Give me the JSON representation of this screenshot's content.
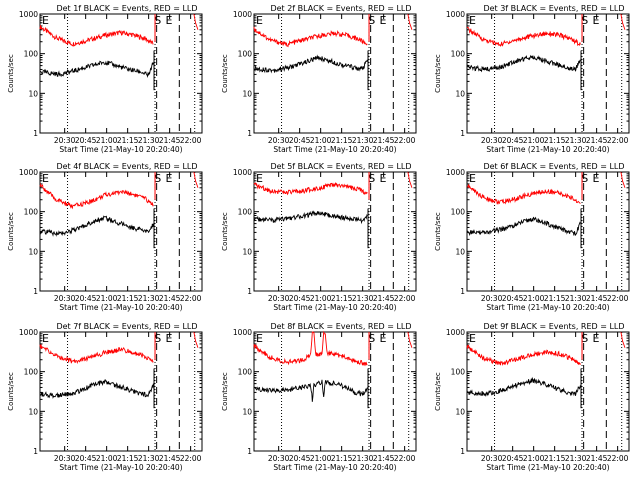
{
  "chart_data": [
    {
      "type": "line",
      "title": "Det 1f BLACK = Events, RED = LLD",
      "xlabel": "Start Time (21-May-10 20:20:40)",
      "ylabel": "Counts/sec",
      "yscale": "log",
      "ylim": [
        1,
        1000
      ],
      "xlim": [
        0,
        100
      ],
      "x_tick_labels": [
        "20:30",
        "20:45",
        "21:00",
        "21:15",
        "21:30",
        "21:45",
        "22:00"
      ],
      "y_tick_labels": [
        "1",
        "10",
        "100",
        "1000"
      ],
      "flag_labels": [
        "E",
        "S",
        "E"
      ],
      "series": [
        {
          "color": "#ff0000",
          "values": [
            [
              0,
              480
            ],
            [
              10,
              250
            ],
            [
              20,
              175
            ],
            [
              30,
              220
            ],
            [
              40,
              290
            ],
            [
              50,
              340
            ],
            [
              57,
              300
            ],
            [
              65,
              240
            ],
            [
              70,
              175
            ]
          ]
        },
        {
          "color": "#000000",
          "values": [
            [
              0,
              35
            ],
            [
              12,
              30
            ],
            [
              22,
              38
            ],
            [
              32,
              50
            ],
            [
              40,
              62
            ],
            [
              47,
              50
            ],
            [
              55,
              40
            ],
            [
              62,
              35
            ],
            [
              67,
              28
            ],
            [
              70,
              60
            ]
          ]
        }
      ]
    },
    {
      "type": "line",
      "title": "Det 2f BLACK = Events, RED = LLD",
      "xlabel": "Start Time (21-May-10 20:20:40)",
      "ylabel": "Counts/sec",
      "yscale": "log",
      "ylim": [
        1,
        1000
      ],
      "xlim": [
        0,
        100
      ],
      "x_tick_labels": [
        "20:30",
        "20:45",
        "21:00",
        "21:15",
        "21:30",
        "21:45",
        "22:00"
      ],
      "y_tick_labels": [
        "1",
        "10",
        "100",
        "1000"
      ],
      "flag_labels": [
        "E",
        "S",
        "E"
      ],
      "series": [
        {
          "color": "#ff0000",
          "values": [
            [
              0,
              420
            ],
            [
              10,
              220
            ],
            [
              20,
              170
            ],
            [
              30,
              220
            ],
            [
              40,
              280
            ],
            [
              50,
              330
            ],
            [
              57,
              290
            ],
            [
              65,
              230
            ],
            [
              70,
              170
            ]
          ]
        },
        {
          "color": "#000000",
          "values": [
            [
              0,
              42
            ],
            [
              12,
              38
            ],
            [
              22,
              45
            ],
            [
              32,
              62
            ],
            [
              40,
              80
            ],
            [
              47,
              65
            ],
            [
              55,
              52
            ],
            [
              62,
              45
            ],
            [
              67,
              40
            ],
            [
              70,
              70
            ]
          ]
        }
      ]
    },
    {
      "type": "line",
      "title": "Det 3f BLACK = Events, RED = LLD",
      "xlabel": "Start Time (21-May-10 20:20:40)",
      "ylabel": "Counts/sec",
      "yscale": "log",
      "ylim": [
        1,
        1000
      ],
      "xlim": [
        0,
        100
      ],
      "x_tick_labels": [
        "20:30",
        "20:45",
        "21:00",
        "21:15",
        "21:30",
        "21:45",
        "22:00"
      ],
      "y_tick_labels": [
        "1",
        "10",
        "100",
        "1000"
      ],
      "flag_labels": [
        "E",
        "S",
        "E"
      ],
      "series": [
        {
          "color": "#ff0000",
          "values": [
            [
              0,
              430
            ],
            [
              10,
              230
            ],
            [
              20,
              170
            ],
            [
              30,
              220
            ],
            [
              40,
              280
            ],
            [
              50,
              330
            ],
            [
              57,
              290
            ],
            [
              65,
              230
            ],
            [
              70,
              170
            ]
          ]
        },
        {
          "color": "#000000",
          "values": [
            [
              0,
              45
            ],
            [
              12,
              40
            ],
            [
              22,
              48
            ],
            [
              32,
              68
            ],
            [
              40,
              85
            ],
            [
              47,
              68
            ],
            [
              55,
              55
            ],
            [
              62,
              45
            ],
            [
              67,
              40
            ],
            [
              70,
              70
            ]
          ]
        }
      ]
    },
    {
      "type": "line",
      "title": "Det 4f BLACK = Events, RED = LLD",
      "xlabel": "Start Time (21-May-10 20:20:40)",
      "ylabel": "Counts/sec",
      "yscale": "log",
      "ylim": [
        1,
        1000
      ],
      "xlim": [
        0,
        100
      ],
      "x_tick_labels": [
        "20:30",
        "20:45",
        "21:00",
        "21:15",
        "21:30",
        "21:45",
        "22:00"
      ],
      "y_tick_labels": [
        "1",
        "10",
        "100",
        "1000"
      ],
      "flag_labels": [
        "E",
        "S",
        "E"
      ],
      "series": [
        {
          "color": "#ff0000",
          "values": [
            [
              0,
              470
            ],
            [
              10,
              200
            ],
            [
              20,
              135
            ],
            [
              30,
              170
            ],
            [
              40,
              260
            ],
            [
              50,
              320
            ],
            [
              57,
              280
            ],
            [
              65,
              210
            ],
            [
              70,
              150
            ]
          ]
        },
        {
          "color": "#000000",
          "values": [
            [
              0,
              32
            ],
            [
              12,
              28
            ],
            [
              22,
              35
            ],
            [
              32,
              55
            ],
            [
              40,
              70
            ],
            [
              47,
              55
            ],
            [
              55,
              42
            ],
            [
              62,
              35
            ],
            [
              67,
              30
            ],
            [
              70,
              50
            ]
          ]
        }
      ]
    },
    {
      "type": "line",
      "title": "Det 5f BLACK = Events, RED = LLD",
      "xlabel": "Start Time (21-May-10 20:20:40)",
      "ylabel": "Counts/sec",
      "yscale": "log",
      "ylim": [
        1,
        1000
      ],
      "xlim": [
        0,
        100
      ],
      "x_tick_labels": [
        "20:30",
        "20:45",
        "21:00",
        "21:15",
        "21:30",
        "21:45",
        "22:00"
      ],
      "y_tick_labels": [
        "1",
        "10",
        "100",
        "1000"
      ],
      "flag_labels": [
        "E",
        "S",
        "E"
      ],
      "series": [
        {
          "color": "#ff0000",
          "values": [
            [
              0,
              480
            ],
            [
              10,
              340
            ],
            [
              20,
              300
            ],
            [
              30,
              330
            ],
            [
              40,
              400
            ],
            [
              50,
              470
            ],
            [
              57,
              420
            ],
            [
              65,
              360
            ],
            [
              70,
              290
            ]
          ]
        },
        {
          "color": "#000000",
          "values": [
            [
              0,
              65
            ],
            [
              12,
              60
            ],
            [
              22,
              68
            ],
            [
              32,
              80
            ],
            [
              40,
              95
            ],
            [
              47,
              80
            ],
            [
              55,
              70
            ],
            [
              62,
              65
            ],
            [
              67,
              60
            ],
            [
              70,
              80
            ]
          ]
        }
      ]
    },
    {
      "type": "line",
      "title": "Det 6f BLACK = Events, RED = LLD",
      "xlabel": "Start Time (21-May-10 20:20:40)",
      "ylabel": "Counts/sec",
      "yscale": "log",
      "ylim": [
        1,
        1000
      ],
      "xlim": [
        0,
        100
      ],
      "x_tick_labels": [
        "20:30",
        "20:45",
        "21:00",
        "21:15",
        "21:30",
        "21:45",
        "22:00"
      ],
      "y_tick_labels": [
        "1",
        "10",
        "100",
        "1000"
      ],
      "flag_labels": [
        "E",
        "S",
        "E"
      ],
      "series": [
        {
          "color": "#ff0000",
          "values": [
            [
              0,
              460
            ],
            [
              10,
              230
            ],
            [
              20,
              170
            ],
            [
              30,
              210
            ],
            [
              40,
              280
            ],
            [
              50,
              330
            ],
            [
              57,
              290
            ],
            [
              65,
              220
            ],
            [
              70,
              160
            ]
          ]
        },
        {
          "color": "#000000",
          "values": [
            [
              0,
              30
            ],
            [
              12,
              30
            ],
            [
              22,
              36
            ],
            [
              32,
              50
            ],
            [
              40,
              65
            ],
            [
              47,
              55
            ],
            [
              55,
              40
            ],
            [
              62,
              32
            ],
            [
              67,
              28
            ],
            [
              70,
              50
            ]
          ]
        }
      ]
    },
    {
      "type": "line",
      "title": "Det 7f BLACK = Events, RED = LLD",
      "xlabel": "Start Time (21-May-10 20:20:40)",
      "ylabel": "Counts/sec",
      "yscale": "log",
      "ylim": [
        1,
        1000
      ],
      "xlim": [
        0,
        100
      ],
      "x_tick_labels": [
        "20:30",
        "20:45",
        "21:00",
        "21:15",
        "21:30",
        "21:45",
        "22:00"
      ],
      "y_tick_labels": [
        "1",
        "10",
        "100",
        "1000"
      ],
      "flag_labels": [
        "E",
        "S",
        "E"
      ],
      "series": [
        {
          "color": "#ff0000",
          "values": [
            [
              0,
              450
            ],
            [
              10,
              250
            ],
            [
              20,
              180
            ],
            [
              30,
              220
            ],
            [
              40,
              300
            ],
            [
              50,
              360
            ],
            [
              57,
              310
            ],
            [
              65,
              240
            ],
            [
              70,
              180
            ]
          ]
        },
        {
          "color": "#000000",
          "values": [
            [
              0,
              27
            ],
            [
              12,
              25
            ],
            [
              22,
              30
            ],
            [
              32,
              45
            ],
            [
              40,
              55
            ],
            [
              47,
              45
            ],
            [
              55,
              35
            ],
            [
              62,
              28
            ],
            [
              67,
              25
            ],
            [
              70,
              50
            ]
          ]
        }
      ]
    },
    {
      "type": "line",
      "title": "Det 8f BLACK = Events, RED = LLD",
      "xlabel": "Start Time (21-May-10 20:20:40)",
      "ylabel": "Counts/sec",
      "yscale": "log",
      "ylim": [
        1,
        1000
      ],
      "xlim": [
        0,
        100
      ],
      "x_tick_labels": [
        "20:30",
        "20:45",
        "21:00",
        "21:15",
        "21:30",
        "21:45",
        "22:00"
      ],
      "y_tick_labels": [
        "1",
        "10",
        "100",
        "1000"
      ],
      "flag_labels": [
        "E",
        "S",
        "E"
      ],
      "series": [
        {
          "color": "#ff0000",
          "values": [
            [
              0,
              450
            ],
            [
              10,
              230
            ],
            [
              20,
              170
            ],
            [
              30,
              200
            ],
            [
              35,
              260
            ],
            [
              36,
              1000
            ],
            [
              37,
              1000
            ],
            [
              38,
              270
            ],
            [
              40,
              280
            ],
            [
              42,
              290
            ],
            [
              43,
              1000
            ],
            [
              44,
              1000
            ],
            [
              45,
              300
            ],
            [
              52,
              260
            ],
            [
              57,
              230
            ],
            [
              62,
              190
            ],
            [
              68,
              160
            ],
            [
              70,
              150
            ]
          ]
        },
        {
          "color": "#000000",
          "values": [
            [
              0,
              36
            ],
            [
              12,
              33
            ],
            [
              22,
              35
            ],
            [
              30,
              40
            ],
            [
              35,
              45
            ],
            [
              36,
              20
            ],
            [
              37,
              45
            ],
            [
              42,
              55
            ],
            [
              43,
              25
            ],
            [
              44,
              55
            ],
            [
              50,
              50
            ],
            [
              57,
              40
            ],
            [
              62,
              30
            ],
            [
              67,
              27
            ],
            [
              70,
              40
            ]
          ]
        }
      ]
    },
    {
      "type": "line",
      "title": "Det 9f BLACK = Events, RED = LLD",
      "xlabel": "Start Time (21-May-10 20:20:40)",
      "ylabel": "Counts/sec",
      "yscale": "log",
      "ylim": [
        1,
        1000
      ],
      "xlim": [
        0,
        100
      ],
      "x_tick_labels": [
        "20:30",
        "20:45",
        "21:00",
        "21:15",
        "21:30",
        "21:45",
        "22:00"
      ],
      "y_tick_labels": [
        "1",
        "10",
        "100",
        "1000"
      ],
      "flag_labels": [
        "E",
        "S",
        "E"
      ],
      "series": [
        {
          "color": "#ff0000",
          "values": [
            [
              0,
              430
            ],
            [
              10,
              220
            ],
            [
              20,
              160
            ],
            [
              30,
              200
            ],
            [
              40,
              270
            ],
            [
              50,
              320
            ],
            [
              57,
              280
            ],
            [
              65,
              210
            ],
            [
              70,
              150
            ]
          ]
        },
        {
          "color": "#000000",
          "values": [
            [
              0,
              30
            ],
            [
              12,
              28
            ],
            [
              22,
              34
            ],
            [
              32,
              48
            ],
            [
              40,
              60
            ],
            [
              47,
              50
            ],
            [
              55,
              38
            ],
            [
              62,
              30
            ],
            [
              67,
              27
            ],
            [
              70,
              45
            ]
          ]
        }
      ]
    }
  ]
}
